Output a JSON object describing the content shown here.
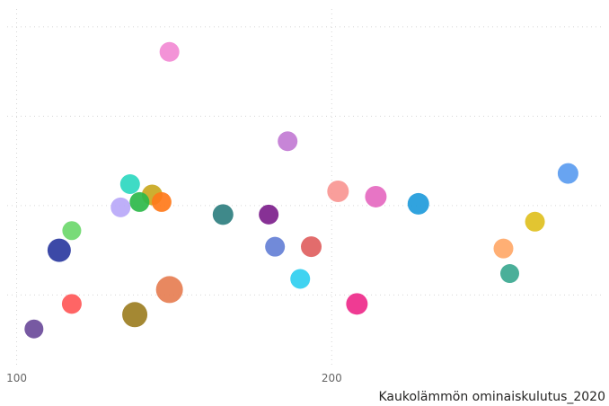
{
  "chart_data": {
    "type": "scatter",
    "xlabel": "Kaukolämmön ominaiskulutus_2020",
    "ylabel": "",
    "xlim": [
      97,
      288
    ],
    "x_ticks": [
      100,
      200
    ],
    "x_tick_labels": [
      "100",
      "200"
    ],
    "ylim": [
      0,
      100
    ],
    "y_grid": [
      20,
      45,
      70,
      95
    ],
    "grid": true,
    "points": [
      {
        "x": 148.5,
        "y": 88,
        "size": 11,
        "color": "#F28AD4"
      },
      {
        "x": 186.0,
        "y": 63,
        "size": 11,
        "color": "#C27BD4"
      },
      {
        "x": 275.0,
        "y": 54,
        "size": 11.5,
        "color": "#5B9CF0"
      },
      {
        "x": 136.0,
        "y": 51,
        "size": 11,
        "color": "#2ED8C0"
      },
      {
        "x": 143.0,
        "y": 48,
        "size": 11.5,
        "color": "#C9A820"
      },
      {
        "x": 202.0,
        "y": 49,
        "size": 12,
        "color": "#F89693"
      },
      {
        "x": 214.0,
        "y": 47.5,
        "size": 12,
        "color": "#E569C0"
      },
      {
        "x": 139.0,
        "y": 46,
        "size": 11,
        "color": "#2DB84A"
      },
      {
        "x": 146.0,
        "y": 46,
        "size": 11,
        "color": "#FF7A1A"
      },
      {
        "x": 133.0,
        "y": 44.5,
        "size": 11,
        "color": "#B8A8F8"
      },
      {
        "x": 227.5,
        "y": 45.5,
        "size": 12,
        "color": "#1F9BDB"
      },
      {
        "x": 165.5,
        "y": 42.5,
        "size": 11.5,
        "color": "#2F7F80"
      },
      {
        "x": 180.0,
        "y": 42.5,
        "size": 11,
        "color": "#7D1F8C"
      },
      {
        "x": 264.5,
        "y": 40.5,
        "size": 11,
        "color": "#E0C020"
      },
      {
        "x": 117.5,
        "y": 38,
        "size": 10.5,
        "color": "#6CD86C"
      },
      {
        "x": 113.5,
        "y": 32.5,
        "size": 13,
        "color": "#2B3A9F"
      },
      {
        "x": 182.0,
        "y": 33.5,
        "size": 11,
        "color": "#6580D6"
      },
      {
        "x": 193.5,
        "y": 33.5,
        "size": 11.5,
        "color": "#E06060"
      },
      {
        "x": 254.5,
        "y": 33,
        "size": 11,
        "color": "#FFA868"
      },
      {
        "x": 256.5,
        "y": 26,
        "size": 10.5,
        "color": "#3BA890"
      },
      {
        "x": 190.0,
        "y": 24.5,
        "size": 11,
        "color": "#30CFF0"
      },
      {
        "x": 148.5,
        "y": 21.5,
        "size": 15,
        "color": "#E67E52"
      },
      {
        "x": 117.5,
        "y": 17.5,
        "size": 11,
        "color": "#FF5858"
      },
      {
        "x": 208.0,
        "y": 17.5,
        "size": 12,
        "color": "#EE2A8A"
      },
      {
        "x": 137.5,
        "y": 14.5,
        "size": 14,
        "color": "#9C7E22"
      },
      {
        "x": 105.5,
        "y": 10.5,
        "size": 10.5,
        "color": "#6B4B9A"
      }
    ]
  }
}
